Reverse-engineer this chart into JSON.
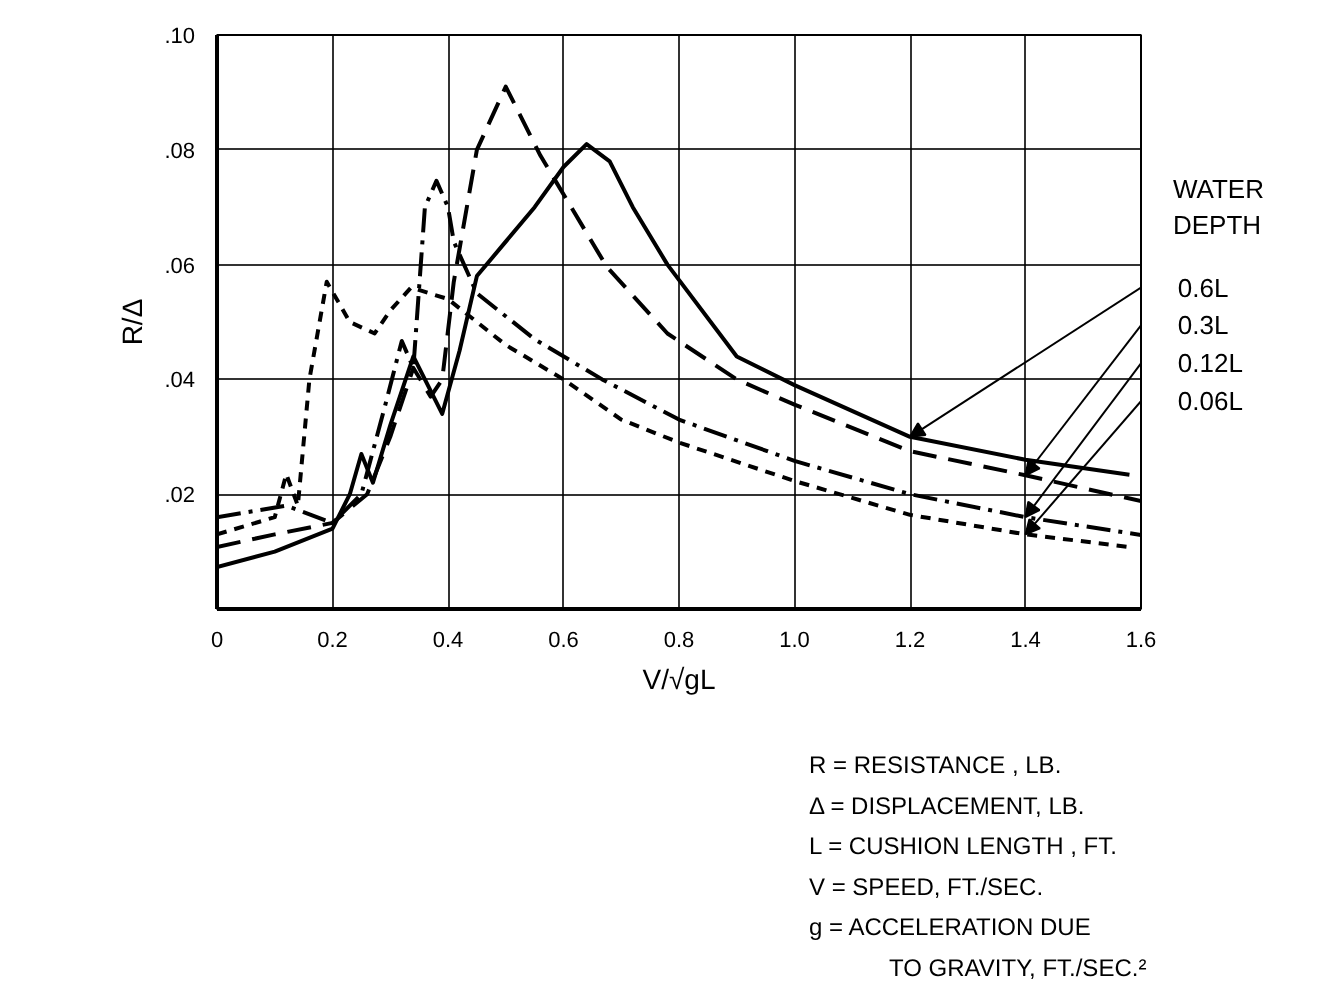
{
  "chart_data": {
    "type": "line",
    "xlabel": "V/√gL",
    "ylabel": "R/Δ",
    "legend_title": "WATER DEPTH",
    "legend": "right",
    "grid": true,
    "xlim": [
      0,
      1.6
    ],
    "ylim": [
      0,
      0.1
    ],
    "xticks": [
      0,
      0.2,
      0.4,
      0.6,
      0.8,
      {
        "value": 1.0,
        "label": "1.0"
      },
      1.2,
      1.4,
      1.6
    ],
    "yticks": [
      {
        "value": 0.02,
        "label": ".02"
      },
      {
        "value": 0.04,
        "label": ".04"
      },
      {
        "value": 0.06,
        "label": ".06"
      },
      {
        "value": 0.08,
        "label": ".08"
      },
      {
        "value": 0.1,
        "label": ".10"
      }
    ],
    "series": [
      {
        "name": "0.6L",
        "color": "#000000",
        "line_style": "solid",
        "x": [
          0,
          0.1,
          0.2,
          0.23,
          0.25,
          0.27,
          0.3,
          0.34,
          0.37,
          0.39,
          0.42,
          0.45,
          0.5,
          0.55,
          0.6,
          0.64,
          0.68,
          0.72,
          0.78,
          0.9,
          1.0,
          1.2,
          1.4,
          1.58
        ],
        "values": [
          0.0073,
          0.01,
          0.014,
          0.02,
          0.027,
          0.022,
          0.032,
          0.044,
          0.038,
          0.034,
          0.045,
          0.058,
          0.064,
          0.07,
          0.077,
          0.081,
          0.078,
          0.07,
          0.06,
          0.044,
          0.039,
          0.03,
          0.026,
          0.0234
        ]
      },
      {
        "name": "0.3L",
        "color": "#000000",
        "line_style": "dashed",
        "x": [
          0,
          0.1,
          0.2,
          0.26,
          0.3,
          0.34,
          0.37,
          0.39,
          0.41,
          0.45,
          0.5,
          0.56,
          0.675,
          0.78,
          0.9,
          1.0,
          1.2,
          1.4,
          1.6
        ],
        "values": [
          0.0108,
          0.013,
          0.015,
          0.02,
          0.03,
          0.042,
          0.037,
          0.04,
          0.057,
          0.08,
          0.091,
          0.079,
          0.0596,
          0.048,
          0.04,
          0.0356,
          0.0275,
          0.0233,
          0.0188
        ]
      },
      {
        "name": "0.12L",
        "color": "#000000",
        "line_style": "dashdot",
        "x": [
          0,
          0.12,
          0.2,
          0.25,
          0.29,
          0.32,
          0.34,
          0.36,
          0.38,
          0.4,
          0.41,
          0.45,
          0.55,
          0.667,
          0.8,
          1.0,
          1.2,
          1.4,
          1.6
        ],
        "values": [
          0.016,
          0.018,
          0.015,
          0.02,
          0.035,
          0.0467,
          0.042,
          0.07,
          0.0746,
          0.07,
          0.064,
          0.055,
          0.047,
          0.04,
          0.033,
          0.0258,
          0.02,
          0.016,
          0.0129
        ]
      },
      {
        "name": "0.06L",
        "color": "#000000",
        "line_style": "dotted",
        "x": [
          0,
          0.1,
          0.12,
          0.14,
          0.16,
          0.19,
          0.23,
          0.273,
          0.3,
          0.336,
          0.4,
          0.5,
          0.6,
          0.7,
          0.8,
          1.0,
          1.2,
          1.4,
          1.58
        ],
        "values": [
          0.013,
          0.016,
          0.0235,
          0.018,
          0.04,
          0.057,
          0.05,
          0.048,
          0.052,
          0.056,
          0.054,
          0.046,
          0.04,
          0.033,
          0.029,
          0.0223,
          0.0164,
          0.013,
          0.0108
        ]
      }
    ],
    "annotations": [
      "R = RESISTANCE , LB.",
      "Δ = DISPLACEMENT, LB.",
      "L = CUSHION LENGTH , FT.",
      "V = SPEED,  FT./SEC.",
      "g = ACCELERATION DUE",
      "TO GRAVITY, FT./SEC.²"
    ]
  }
}
